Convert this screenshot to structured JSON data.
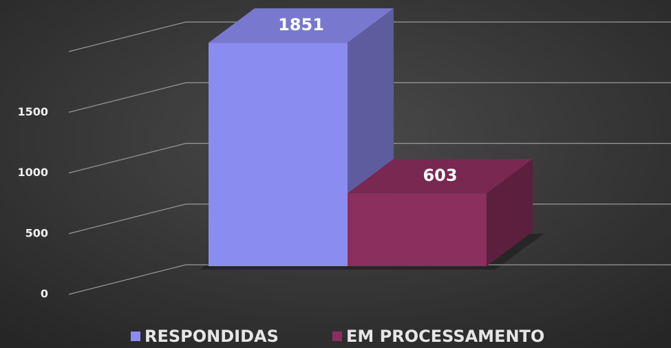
{
  "chart_data": {
    "type": "bar3d",
    "categories": [
      null
    ],
    "series": [
      {
        "name": "RESPONDIDAS",
        "color": "#8b8cf0",
        "values": [
          1851
        ]
      },
      {
        "name": "EM PROCESSAMENTO",
        "color": "#8b2f5e",
        "values": [
          603
        ]
      }
    ],
    "ylim": [
      0,
      2000
    ],
    "yticks": [
      0,
      500,
      1000,
      1500
    ],
    "grid": true,
    "legend": "bottom"
  }
}
